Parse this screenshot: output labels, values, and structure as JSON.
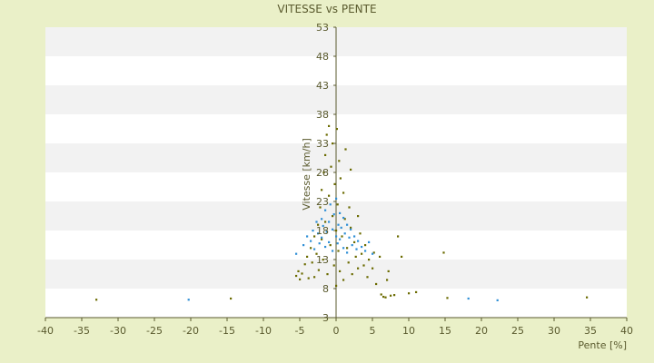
{
  "chart_data": {
    "type": "scatter",
    "title": "VITESSE vs PENTE",
    "xlabel": "Pente [%]",
    "ylabel": "Vitesse [km/h]",
    "xlim": [
      -40,
      40
    ],
    "ylim": [
      3,
      53
    ],
    "xticks": [
      -40,
      -35,
      -30,
      -25,
      -20,
      -15,
      -10,
      -5,
      0,
      5,
      10,
      15,
      20,
      25,
      30,
      35,
      40
    ],
    "yticks": [
      3,
      8,
      13,
      18,
      23,
      28,
      33,
      38,
      43,
      48,
      53
    ],
    "grid": "horizontal alternating bands",
    "legend": "none",
    "colors": {
      "background": "#eaf0c8",
      "band_light": "#ffffff",
      "band_dark": "#f2f2f2",
      "axis": "#5a5a2e",
      "series_a": "#6b6b00",
      "series_b": "#2f8fd6"
    },
    "series": [
      {
        "color": "#6b6b00",
        "points": [
          [
            -33,
            6.1
          ],
          [
            -14.5,
            6.3
          ],
          [
            -5.5,
            10.2
          ],
          [
            -5.2,
            11.0
          ],
          [
            -5.0,
            9.6
          ],
          [
            -4.7,
            10.6
          ],
          [
            -4.3,
            12.2
          ],
          [
            -4.0,
            13.5
          ],
          [
            -3.8,
            9.8
          ],
          [
            -3.5,
            15.0
          ],
          [
            -3.3,
            12.5
          ],
          [
            -3.0,
            10.0
          ],
          [
            -3.0,
            17.0
          ],
          [
            -2.7,
            14.0
          ],
          [
            -2.5,
            19.0
          ],
          [
            -2.4,
            11.2
          ],
          [
            -2.2,
            22.0
          ],
          [
            -2.0,
            16.5
          ],
          [
            -2.0,
            25.0
          ],
          [
            -1.8,
            13.0
          ],
          [
            -1.7,
            28.0
          ],
          [
            -1.5,
            19.5
          ],
          [
            -1.5,
            31.0
          ],
          [
            -1.3,
            34.5
          ],
          [
            -1.2,
            10.5
          ],
          [
            -1.0,
            24.0
          ],
          [
            -1.0,
            36.0
          ],
          [
            -0.8,
            15.5
          ],
          [
            -0.7,
            29.0
          ],
          [
            -0.5,
            20.5
          ],
          [
            -0.5,
            33.0
          ],
          [
            -0.3,
            12.0
          ],
          [
            -0.2,
            26.0
          ],
          [
            0.0,
            18.0
          ],
          [
            0.0,
            8.5
          ],
          [
            0.1,
            35.5
          ],
          [
            0.2,
            22.5
          ],
          [
            0.3,
            14.5
          ],
          [
            0.4,
            30.0
          ],
          [
            0.5,
            11.0
          ],
          [
            0.6,
            27.0
          ],
          [
            0.8,
            17.0
          ],
          [
            1.0,
            24.5
          ],
          [
            1.0,
            9.5
          ],
          [
            1.2,
            20.0
          ],
          [
            1.3,
            32.0
          ],
          [
            1.5,
            15.0
          ],
          [
            1.7,
            12.5
          ],
          [
            1.8,
            22.0
          ],
          [
            2.0,
            18.5
          ],
          [
            2.0,
            28.5
          ],
          [
            2.2,
            10.5
          ],
          [
            2.5,
            16.0
          ],
          [
            2.7,
            13.5
          ],
          [
            3.0,
            20.5
          ],
          [
            3.0,
            11.5
          ],
          [
            3.3,
            17.5
          ],
          [
            3.5,
            14.0
          ],
          [
            3.8,
            12.0
          ],
          [
            4.0,
            15.5
          ],
          [
            4.3,
            10.0
          ],
          [
            4.5,
            13.0
          ],
          [
            5.0,
            11.5
          ],
          [
            5.2,
            14.2
          ],
          [
            5.5,
            8.8
          ],
          [
            6.0,
            13.5
          ],
          [
            6.2,
            7.0
          ],
          [
            6.5,
            6.6
          ],
          [
            6.8,
            6.5
          ],
          [
            7.0,
            9.5
          ],
          [
            7.2,
            11.0
          ],
          [
            7.5,
            6.8
          ],
          [
            8.0,
            6.9
          ],
          [
            8.5,
            17.0
          ],
          [
            9.0,
            13.5
          ],
          [
            10.0,
            7.2
          ],
          [
            11.0,
            7.4
          ],
          [
            14.8,
            14.2
          ],
          [
            15.3,
            6.4
          ],
          [
            34.5,
            6.5
          ]
        ]
      },
      {
        "color": "#2f8fd6",
        "points": [
          [
            -20.3,
            6.1
          ],
          [
            -5.5,
            14.0
          ],
          [
            -4.5,
            15.5
          ],
          [
            -4.0,
            17.0
          ],
          [
            -3.5,
            16.2
          ],
          [
            -3.2,
            18.0
          ],
          [
            -3.0,
            14.8
          ],
          [
            -2.7,
            19.5
          ],
          [
            -2.5,
            17.5
          ],
          [
            -2.3,
            15.8
          ],
          [
            -2.0,
            20.0
          ],
          [
            -2.0,
            16.8
          ],
          [
            -1.8,
            18.8
          ],
          [
            -1.5,
            21.5
          ],
          [
            -1.5,
            15.2
          ],
          [
            -1.3,
            17.8
          ],
          [
            -1.0,
            19.5
          ],
          [
            -1.0,
            16.0
          ],
          [
            -0.8,
            22.5
          ],
          [
            -0.5,
            18.2
          ],
          [
            -0.5,
            14.5
          ],
          [
            -0.3,
            20.8
          ],
          [
            0.0,
            17.0
          ],
          [
            0.0,
            23.5
          ],
          [
            0.2,
            15.8
          ],
          [
            0.3,
            19.0
          ],
          [
            0.5,
            21.0
          ],
          [
            0.5,
            16.5
          ],
          [
            0.7,
            18.5
          ],
          [
            1.0,
            20.2
          ],
          [
            1.0,
            15.0
          ],
          [
            1.2,
            17.5
          ],
          [
            1.5,
            19.0
          ],
          [
            1.5,
            14.2
          ],
          [
            1.8,
            16.8
          ],
          [
            2.0,
            18.2
          ],
          [
            2.2,
            15.5
          ],
          [
            2.5,
            17.0
          ],
          [
            2.8,
            14.8
          ],
          [
            3.0,
            16.2
          ],
          [
            3.5,
            15.2
          ],
          [
            4.0,
            14.5
          ],
          [
            4.5,
            16.0
          ],
          [
            5.0,
            14.0
          ],
          [
            18.2,
            6.3
          ],
          [
            22.2,
            6.0
          ]
        ]
      }
    ]
  }
}
